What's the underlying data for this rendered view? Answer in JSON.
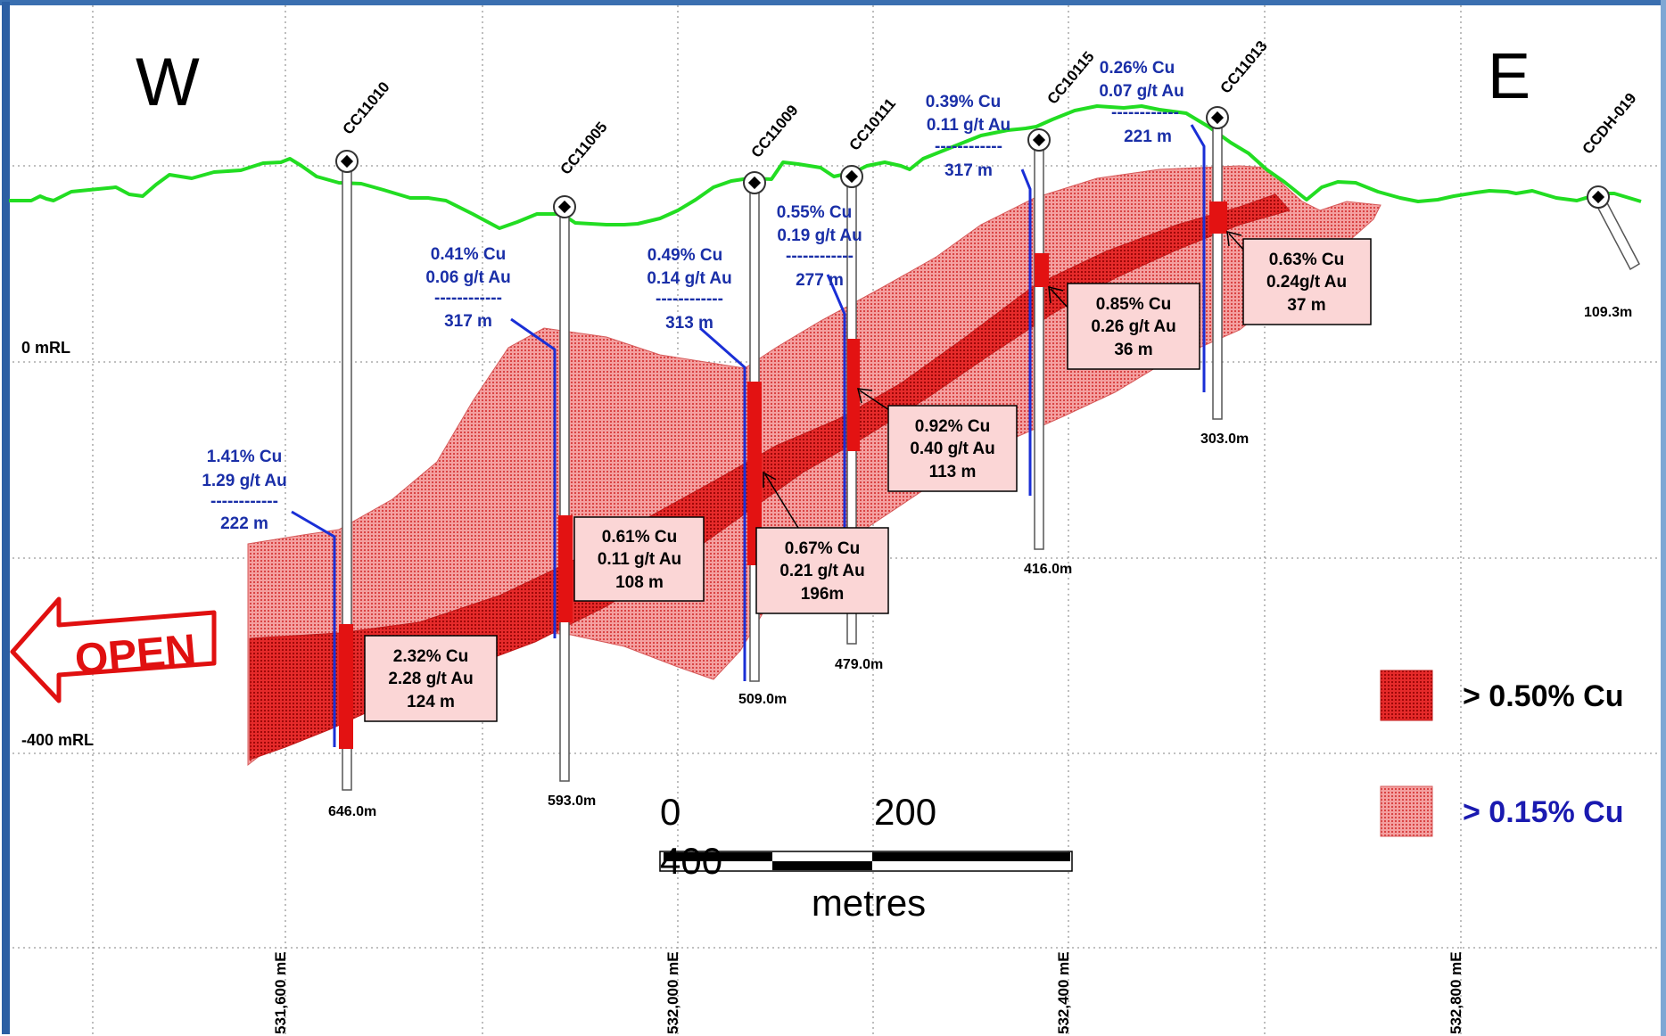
{
  "directions": {
    "west": "W",
    "east": "E"
  },
  "levels": [
    "0 mRL",
    "-400 mRL"
  ],
  "eastings": [
    "531,600 mE",
    "532,000 mE",
    "532,400 mE",
    "532,800 mE"
  ],
  "holes": [
    {
      "id": "CC11010",
      "depth": "646.0m"
    },
    {
      "id": "CC11005",
      "depth": "593.0m"
    },
    {
      "id": "CC11009",
      "depth": "509.0m"
    },
    {
      "id": "CC10111",
      "depth": "479.0m"
    },
    {
      "id": "CC10115",
      "depth": "416.0m"
    },
    {
      "id": "CC11013",
      "depth": "303.0m"
    },
    {
      "id": "CCDH-019",
      "depth": "109.3m"
    }
  ],
  "hole_intercepts": [
    {
      "cu": "1.41% Cu",
      "au": "1.29 g/t Au",
      "dash": "------------",
      "length": "222 m"
    },
    {
      "cu": "0.41% Cu",
      "au": "0.06 g/t Au",
      "dash": "------------",
      "length": "317 m"
    },
    {
      "cu": "0.49% Cu",
      "au": "0.14 g/t Au",
      "dash": "------------",
      "length": "313 m"
    },
    {
      "cu": "0.55% Cu",
      "au": "0.19 g/t Au",
      "dash": "------------",
      "length": "277 m"
    },
    {
      "cu": "0.39% Cu",
      "au": "0.11 g/t Au",
      "dash": "------------",
      "length": "317 m"
    },
    {
      "cu": "0.26% Cu",
      "au": "0.07 g/t Au",
      "dash": "------------",
      "length": "221 m"
    }
  ],
  "high_grade_boxes": [
    {
      "cu": "2.32% Cu",
      "au": "2.28 g/t Au",
      "length": "124 m"
    },
    {
      "cu": "0.61% Cu",
      "au": "0.11 g/t Au",
      "length": "108 m"
    },
    {
      "cu": "0.67% Cu",
      "au": "0.21 g/t Au",
      "length": "196m"
    },
    {
      "cu": "0.92% Cu",
      "au": "0.40 g/t Au",
      "length": "113 m"
    },
    {
      "cu": "0.85% Cu",
      "au": "0.26 g/t Au",
      "length": "36 m"
    },
    {
      "cu": "0.63% Cu",
      "au": "0.24g/t Au",
      "length": "37 m"
    }
  ],
  "open_label": "OPEN",
  "scale": {
    "zero": "0",
    "mid": "200",
    "end": "400",
    "unit": "metres"
  },
  "legend": [
    {
      "label": "> 0.50% Cu",
      "color": "#000000"
    },
    {
      "label": "> 0.15% Cu",
      "color": "#1a1ab0"
    }
  ],
  "colors": {
    "topography": "#22dd22",
    "intercept_text": "#1a2fa8",
    "trace": "#1a2fd6",
    "high_grade": "#e31212",
    "low_grade": "#f07f7f",
    "open_arrow": "#e01010"
  }
}
